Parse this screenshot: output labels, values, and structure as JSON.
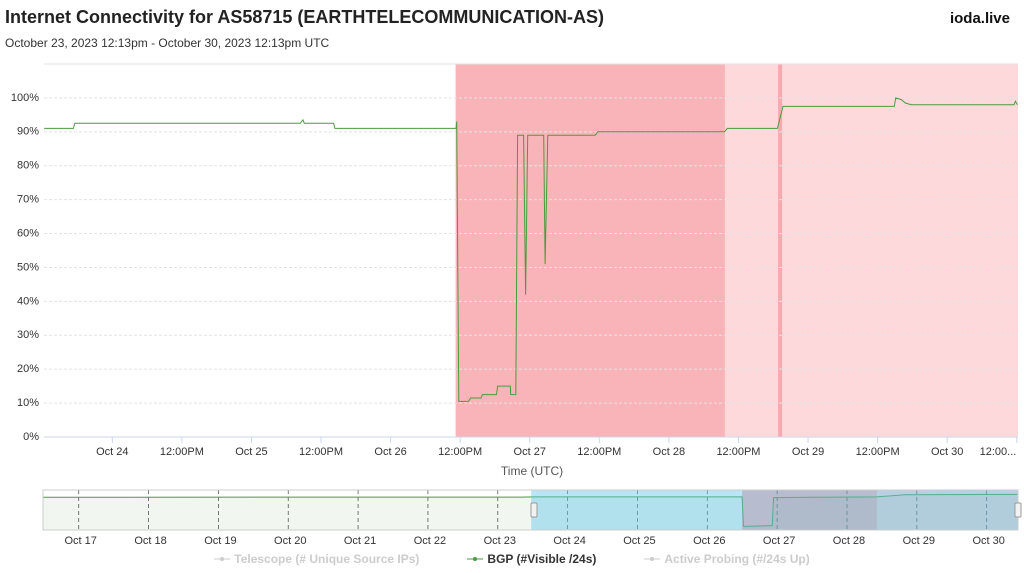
{
  "brand": "ioda.live",
  "chart_data": [
    {
      "type": "line",
      "title": "Internet Connectivity for AS58715 (EARTHTELECOMMUNICATION-AS)",
      "subtitle": "October 23, 2023 12:13pm - October 30, 2023 12:13pm UTC",
      "x_label": "Time (UTC)",
      "x": [
        23.51,
        23.72,
        23.73,
        25.35,
        25.37,
        25.38,
        25.59,
        25.6,
        26.47,
        26.475,
        26.49,
        26.56,
        26.575,
        26.65,
        26.66,
        26.76,
        26.77,
        26.86,
        26.863,
        26.9,
        26.913,
        26.956,
        26.97,
        26.985,
        27.1,
        27.11,
        27.13,
        27.47,
        27.49,
        28.4,
        28.42,
        28.78,
        28.82,
        29.62,
        29.63,
        29.67,
        29.7,
        29.74,
        30.48,
        30.49,
        30.505
      ],
      "xlim": [
        23.509,
        30.509
      ],
      "xticks": [
        {
          "value": 24,
          "label": "Oct 24"
        },
        {
          "value": 24.5,
          "label": "12:00PM"
        },
        {
          "value": 25,
          "label": "Oct 25"
        },
        {
          "value": 25.5,
          "label": "12:00PM"
        },
        {
          "value": 26,
          "label": "Oct 26"
        },
        {
          "value": 26.5,
          "label": "12:00PM"
        },
        {
          "value": 27,
          "label": "Oct 27"
        },
        {
          "value": 27.5,
          "label": "12:00PM"
        },
        {
          "value": 28,
          "label": "Oct 28"
        },
        {
          "value": 28.5,
          "label": "12:00PM"
        },
        {
          "value": 29,
          "label": "Oct 29"
        },
        {
          "value": 29.5,
          "label": "12:00PM"
        },
        {
          "value": 30,
          "label": "Oct 30"
        },
        {
          "value": 30.5,
          "label": "12:00..."
        }
      ],
      "ylim": [
        0,
        110
      ],
      "yticks": [
        {
          "value": 0,
          "label": "0%"
        },
        {
          "value": 10,
          "label": "10%"
        },
        {
          "value": 20,
          "label": "20%"
        },
        {
          "value": 30,
          "label": "30%"
        },
        {
          "value": 40,
          "label": "40%"
        },
        {
          "value": 50,
          "label": "50%"
        },
        {
          "value": 60,
          "label": "60%"
        },
        {
          "value": 70,
          "label": "70%"
        },
        {
          "value": 80,
          "label": "80%"
        },
        {
          "value": 90,
          "label": "90%"
        },
        {
          "value": 100,
          "label": "100%"
        }
      ],
      "grid": true,
      "bands": [
        {
          "from": 26.467,
          "to": 28.403,
          "color": "#f9b4b9"
        },
        {
          "from": 28.403,
          "to": 30.509,
          "color": "#fdd9dc"
        },
        {
          "from": 28.785,
          "to": 28.814,
          "color": "#f7a9af"
        }
      ],
      "series": [
        {
          "name": "Telescope (# Unique Source IPs)",
          "color": "#cccccc",
          "visible": false
        },
        {
          "name": "BGP (#Visible /24s)",
          "color": "#4a9c3f",
          "visible": true,
          "values": [
            91,
            91,
            92.5,
            92.5,
            93.5,
            92.5,
            92.5,
            91,
            91,
            93,
            10.5,
            10.5,
            11.5,
            11.5,
            12.5,
            12.5,
            15,
            15,
            12.5,
            12.5,
            89,
            89,
            42,
            89,
            89,
            51,
            89,
            89,
            90,
            90,
            91,
            91,
            97.5,
            97.5,
            100,
            99.5,
            98.5,
            98,
            98,
            99,
            98
          ]
        },
        {
          "name": "Active Probing (#/24s Up)",
          "color": "#cccccc",
          "visible": false
        }
      ]
    },
    {
      "type": "line",
      "x": [
        16.46,
        20,
        23.3,
        23.5,
        26.47,
        26.49,
        26.9,
        26.92,
        27.5,
        28.4,
        28.8,
        30.42
      ],
      "xlim": [
        16.46,
        30.42
      ],
      "xticks": [
        {
          "value": 17,
          "label": "Oct 17"
        },
        {
          "value": 18,
          "label": "Oct 18"
        },
        {
          "value": 19,
          "label": "Oct 19"
        },
        {
          "value": 20,
          "label": "Oct 20"
        },
        {
          "value": 21,
          "label": "Oct 21"
        },
        {
          "value": 22,
          "label": "Oct 22"
        },
        {
          "value": 23,
          "label": "Oct 23"
        },
        {
          "value": 24,
          "label": "Oct 24"
        },
        {
          "value": 25,
          "label": "Oct 25"
        },
        {
          "value": 26,
          "label": "Oct 26"
        },
        {
          "value": 27,
          "label": "Oct 27"
        },
        {
          "value": 28,
          "label": "Oct 28"
        },
        {
          "value": 29,
          "label": "Oct 29"
        },
        {
          "value": 30,
          "label": "Oct 30"
        }
      ],
      "ylim": [
        0,
        110
      ],
      "bands": [
        {
          "from": 26.47,
          "to": 28.4,
          "color": "#f9b4b9"
        },
        {
          "from": 28.4,
          "to": 30.42,
          "color": "#fdd9dc"
        }
      ],
      "selection": [
        23.45,
        30.42
      ],
      "series": [
        {
          "color": "#4a9c3f",
          "values": [
            90,
            90.5,
            90.5,
            91,
            91,
            10,
            12,
            89,
            90,
            91,
            97,
            98
          ]
        }
      ]
    }
  ]
}
